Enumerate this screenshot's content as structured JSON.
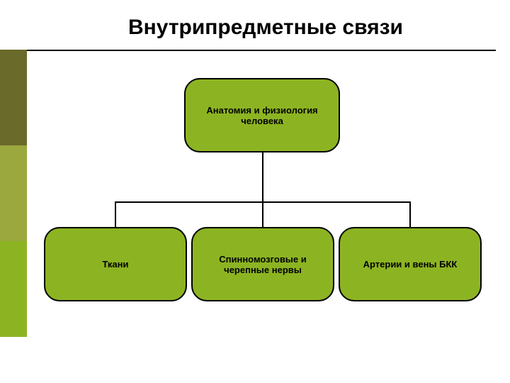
{
  "title": "Внутрипредметные связи",
  "colors": {
    "node_fill": "#8cb422",
    "node_border": "#000000",
    "connector": "#000000",
    "title_color": "#000000",
    "title_rule": "#000000",
    "side_block_1": "#6a6a2a",
    "side_block_2": "#9aa83e",
    "side_block_3": "#8cb422",
    "background": "#ffffff",
    "node_text": "#000000"
  },
  "diagram": {
    "type": "tree",
    "root": {
      "label": "Анатомия и физиология человека"
    },
    "children": [
      {
        "label": "Ткани"
      },
      {
        "label": "Спинномозговые и черепные нервы"
      },
      {
        "label": "Артерии и вены БКК"
      }
    ],
    "node_style": {
      "border_radius": 22,
      "border_width": 2,
      "root_width": 220,
      "root_height": 105,
      "child_width": 202,
      "child_height": 105,
      "font_size": 13,
      "font_weight": "bold"
    },
    "connector_style": {
      "width": 2
    }
  }
}
